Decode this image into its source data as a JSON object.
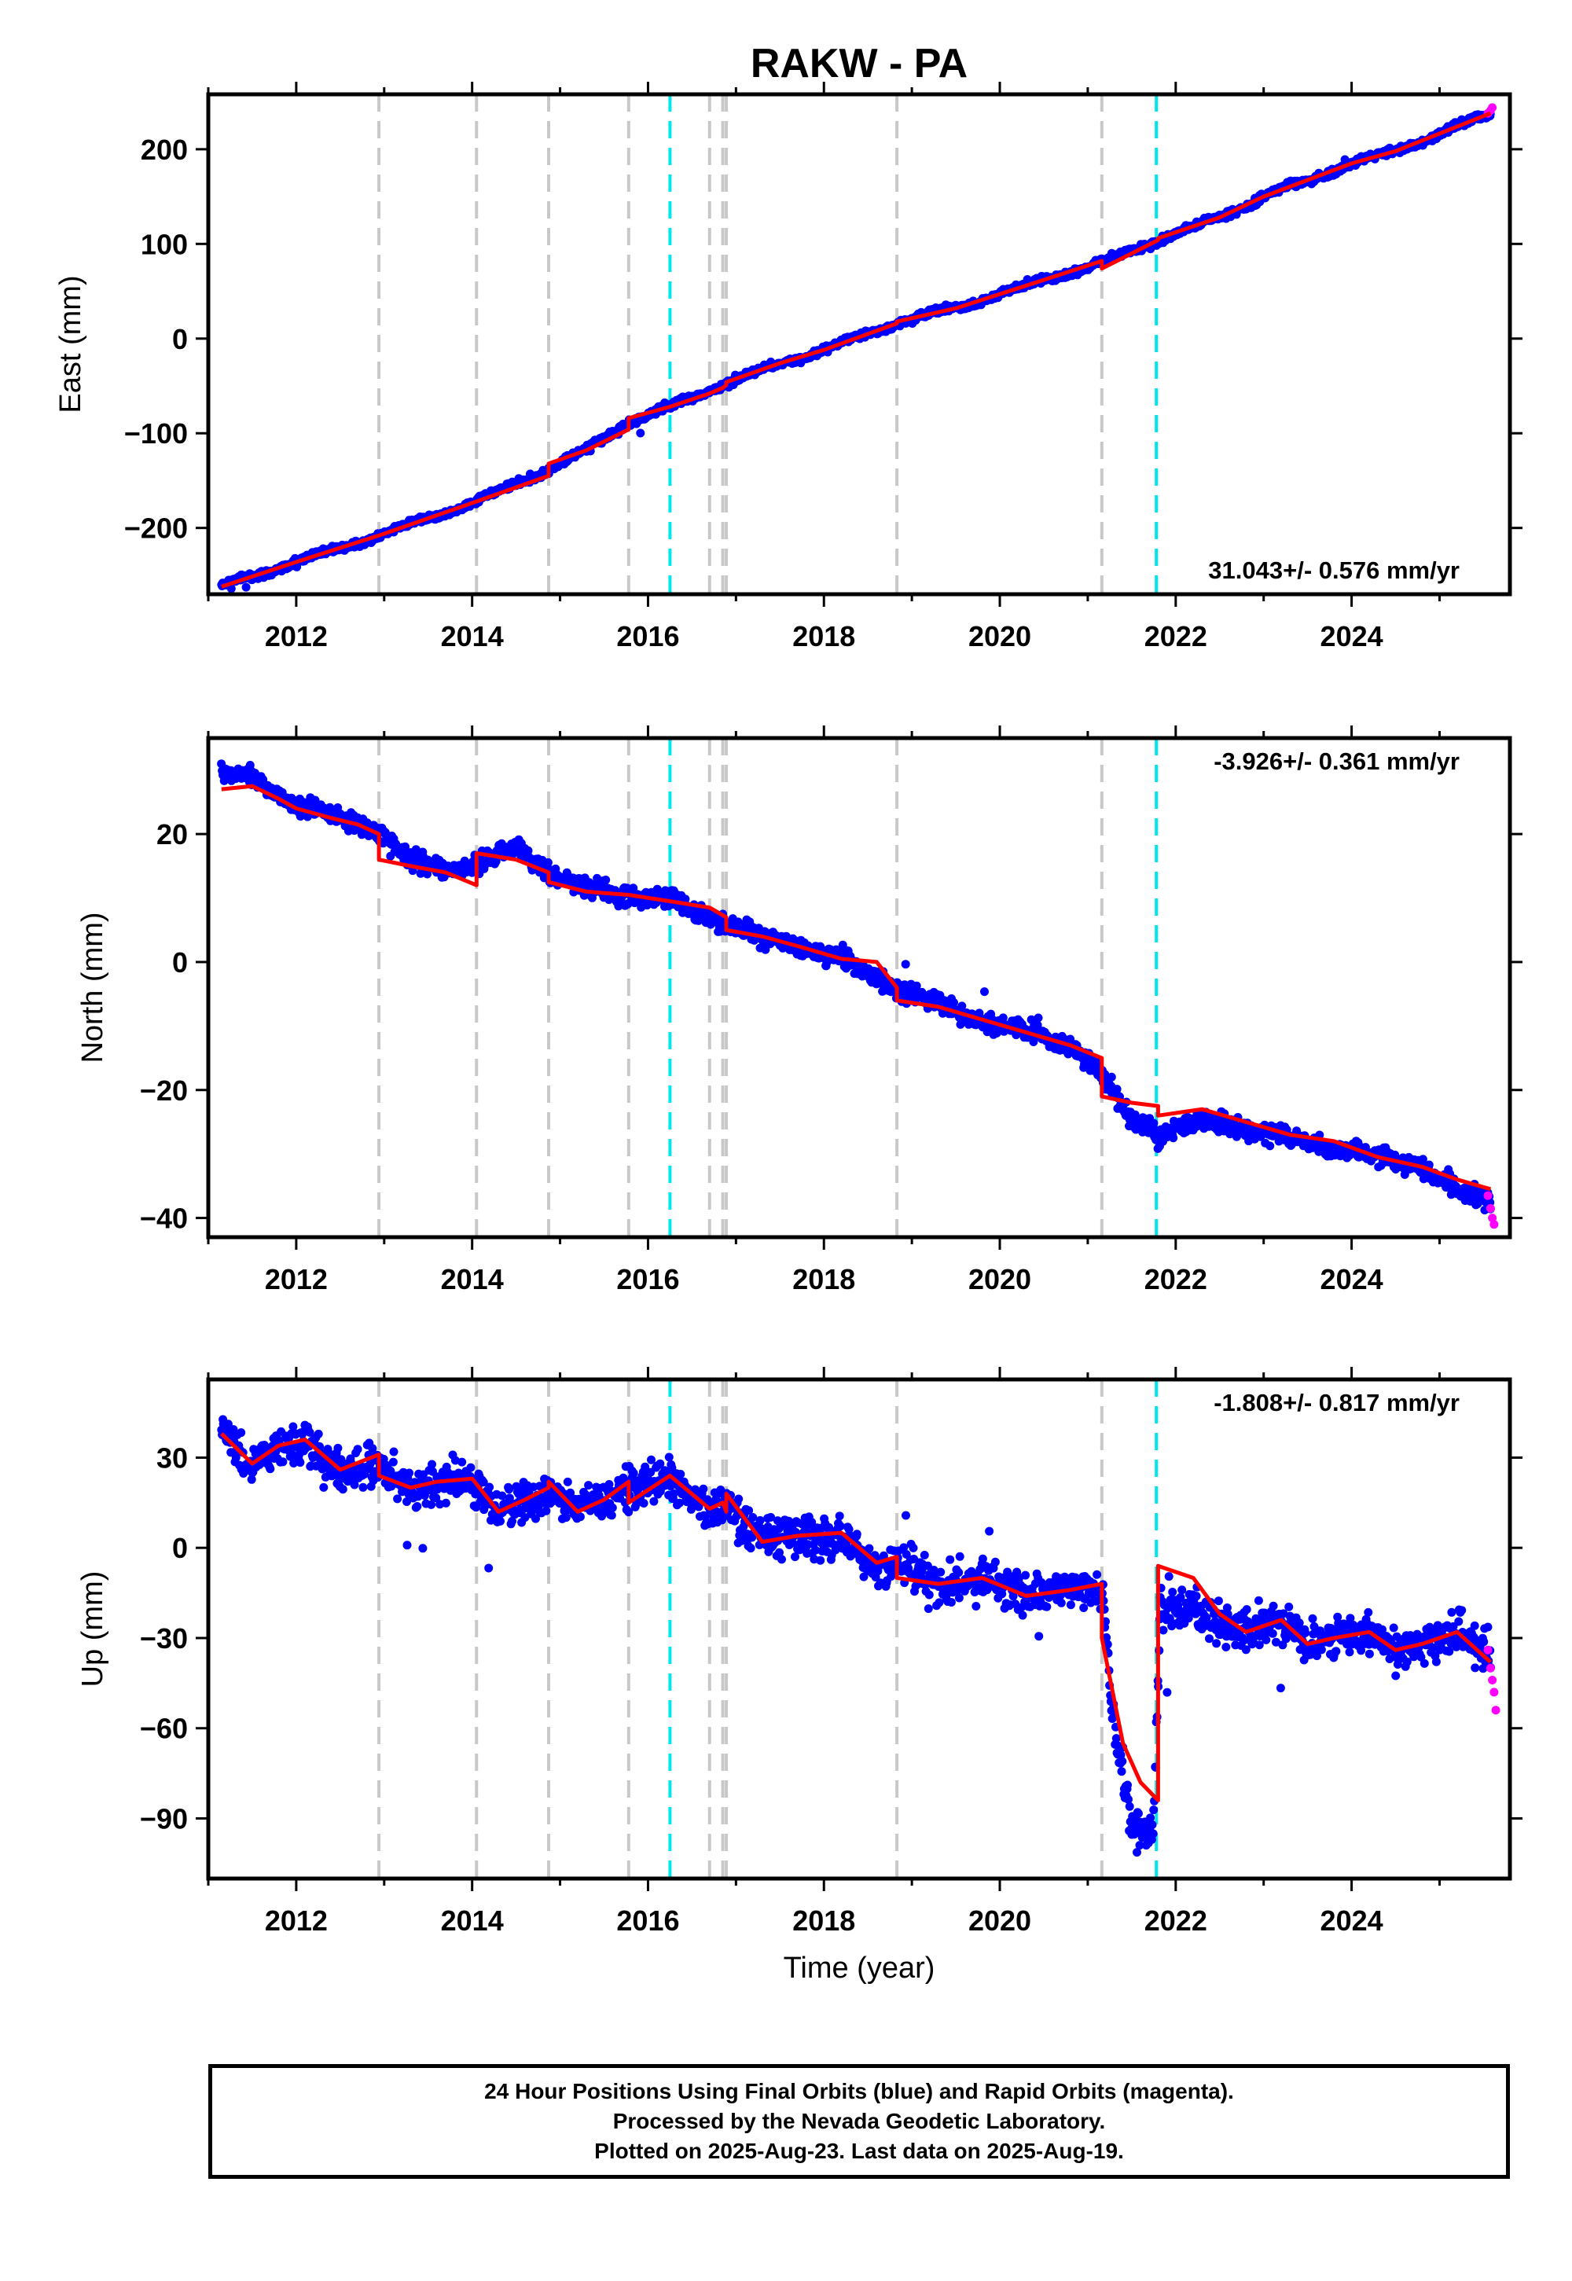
{
  "title": "RAKW - PA",
  "chart_data": [
    {
      "type": "scatter",
      "name": "east",
      "ylabel": "East (mm)",
      "xlabel": "",
      "xlim": [
        2011.0,
        2025.8
      ],
      "ylim": [
        -270,
        258
      ],
      "xticks": [
        2012,
        2014,
        2016,
        2018,
        2020,
        2022,
        2024
      ],
      "xtick_labels": [
        "2012",
        "2014",
        "2016",
        "2018",
        "2020",
        "2022",
        "2024"
      ],
      "yticks": [
        -200,
        -100,
        0,
        100,
        200
      ],
      "ytick_labels": [
        "−200",
        "−100",
        "0",
        "100",
        "200"
      ],
      "rate_label": "31.043+/- 0.576 mm/yr",
      "rate_position": "bottom-right",
      "model": {
        "x": [
          2011.15,
          2012.0,
          2012.94,
          2012.94,
          2014.05,
          2014.05,
          2014.87,
          2014.87,
          2015.3,
          2015.78,
          2015.78,
          2016.25,
          2016.7,
          2016.85,
          2016.89,
          2016.89,
          2017.5,
          2018.0,
          2018.83,
          2018.83,
          2019.5,
          2020.5,
          2021.16,
          2021.16,
          2021.8,
          2021.8,
          2022.5,
          2023.0,
          2024.0,
          2024.5,
          2025.58
        ],
        "y": [
          -262,
          -236,
          -208,
          -208,
          -172,
          -172,
          -145,
          -132,
          -118,
          -96,
          -84,
          -72,
          -58,
          -52,
          -49,
          -46,
          -26,
          -12,
          16,
          18,
          32,
          62,
          82,
          74,
          104,
          106,
          128,
          150,
          185,
          198,
          238
        ]
      },
      "obs_trend": {
        "x": [
          2011.15,
          2012.0,
          2012.94,
          2014.05,
          2014.87,
          2015.3,
          2015.78,
          2016.25,
          2016.89,
          2017.5,
          2018.0,
          2018.83,
          2019.5,
          2020.5,
          2021.16,
          2021.8,
          2022.5,
          2023.0,
          2024.0,
          2024.5,
          2025.58
        ],
        "y": [
          -262,
          -236,
          -208,
          -172,
          -138,
          -118,
          -88,
          -72,
          -47,
          -26,
          -12,
          17,
          32,
          62,
          80,
          104,
          128,
          150,
          185,
          198,
          238
        ]
      },
      "scatter_sd": 3.0,
      "rapid": {
        "x": [
          2025.55,
          2025.58,
          2025.6
        ],
        "y": [
          238,
          241,
          244
        ]
      },
      "final_color": "#0000ff",
      "rapid_color": "#ff00ff",
      "model_color": "#ff0000"
    },
    {
      "type": "scatter",
      "name": "north",
      "ylabel": "North (mm)",
      "xlabel": "",
      "xlim": [
        2011.0,
        2025.8
      ],
      "ylim": [
        -43,
        35
      ],
      "xticks": [
        2012,
        2014,
        2016,
        2018,
        2020,
        2022,
        2024
      ],
      "xtick_labels": [
        "2012",
        "2014",
        "2016",
        "2018",
        "2020",
        "2022",
        "2024"
      ],
      "yticks": [
        -40,
        -20,
        0,
        20
      ],
      "ytick_labels": [
        "−40",
        "−20",
        "0",
        "20"
      ],
      "rate_label": "-3.926+/- 0.361 mm/yr",
      "rate_position": "top-right",
      "model": {
        "x": [
          2011.15,
          2011.5,
          2011.8,
          2012.0,
          2012.4,
          2012.7,
          2012.94,
          2012.94,
          2013.3,
          2013.7,
          2014.05,
          2014.05,
          2014.5,
          2014.87,
          2014.87,
          2015.3,
          2015.78,
          2015.78,
          2016.25,
          2016.7,
          2016.89,
          2016.89,
          2017.3,
          2017.7,
          2018.2,
          2018.6,
          2018.83,
          2018.83,
          2019.3,
          2019.8,
          2020.3,
          2020.8,
          2021.16,
          2021.16,
          2021.5,
          2021.8,
          2021.8,
          2022.3,
          2022.8,
          2023.3,
          2023.8,
          2024.3,
          2024.8,
          2025.2,
          2025.58
        ],
        "y": [
          27,
          27.5,
          25.5,
          24,
          22.5,
          21.5,
          20,
          16,
          15,
          14,
          12,
          17,
          16,
          14,
          12.5,
          11,
          10.5,
          10.5,
          9.5,
          8.5,
          7,
          5,
          4,
          2.5,
          0.5,
          0,
          -4,
          -6,
          -7,
          -9,
          -11,
          -13,
          -15,
          -21,
          -22,
          -22.5,
          -24,
          -23,
          -25,
          -27,
          -28,
          -30.5,
          -32,
          -34,
          -35.5
        ]
      },
      "obs_trend": {
        "x": [
          2011.15,
          2011.5,
          2011.8,
          2012.0,
          2012.4,
          2012.7,
          2012.94,
          2013.3,
          2013.7,
          2014.05,
          2014.5,
          2014.87,
          2015.3,
          2015.78,
          2016.25,
          2016.89,
          2017.3,
          2017.7,
          2018.2,
          2018.83,
          2019.3,
          2019.8,
          2020.3,
          2020.8,
          2021.16,
          2021.5,
          2021.8,
          2022.3,
          2022.8,
          2023.3,
          2023.8,
          2024.3,
          2024.8,
          2025.2,
          2025.58
        ],
        "y": [
          29.5,
          29,
          26,
          24.5,
          23,
          22,
          20,
          16,
          14.5,
          15,
          18,
          14,
          11.5,
          10.5,
          9.5,
          6,
          4,
          2.5,
          0.5,
          -4,
          -6.5,
          -9,
          -11,
          -13,
          -18,
          -25,
          -26.5,
          -25,
          -26,
          -27.5,
          -29,
          -30.5,
          -32,
          -35.5,
          -37
        ]
      },
      "scatter_sd": 1.2,
      "rapid": {
        "x": [
          2025.55,
          2025.58,
          2025.6,
          2025.62
        ],
        "y": [
          -36.5,
          -38.5,
          -40,
          -41
        ]
      },
      "final_color": "#0000ff",
      "rapid_color": "#ff00ff",
      "model_color": "#ff0000"
    },
    {
      "type": "scatter",
      "name": "up",
      "ylabel": "Up (mm)",
      "xlabel": "Time (year)",
      "xlim": [
        2011.0,
        2025.8
      ],
      "ylim": [
        -110,
        56
      ],
      "xticks": [
        2012,
        2014,
        2016,
        2018,
        2020,
        2022,
        2024
      ],
      "xtick_labels": [
        "2012",
        "2014",
        "2016",
        "2018",
        "2020",
        "2022",
        "2024"
      ],
      "yticks": [
        -90,
        -60,
        -30,
        0,
        30
      ],
      "ytick_labels": [
        "−90",
        "−60",
        "−30",
        "0",
        "30"
      ],
      "rate_label": "-1.808+/- 0.817 mm/yr",
      "rate_position": "top-right",
      "model": {
        "x": [
          2011.15,
          2011.5,
          2011.8,
          2012.1,
          2012.5,
          2012.94,
          2012.94,
          2013.3,
          2013.6,
          2014.0,
          2014.3,
          2014.6,
          2014.87,
          2014.87,
          2015.2,
          2015.5,
          2015.78,
          2015.78,
          2016.25,
          2016.7,
          2016.85,
          2016.89,
          2016.89,
          2017.3,
          2017.7,
          2018.2,
          2018.6,
          2018.83,
          2018.83,
          2019.3,
          2019.8,
          2020.3,
          2020.8,
          2021.16,
          2021.16,
          2021.4,
          2021.6,
          2021.8,
          2021.8,
          2022.2,
          2022.5,
          2022.8,
          2023.2,
          2023.5,
          2023.8,
          2024.2,
          2024.5,
          2024.8,
          2025.2,
          2025.58
        ],
        "y": [
          38,
          28,
          34,
          36,
          26,
          31,
          24,
          20,
          22,
          23,
          12,
          16,
          20,
          22,
          12,
          16,
          22,
          15,
          24,
          13,
          15,
          12,
          18,
          2,
          4,
          5,
          -5,
          -3,
          -10,
          -12,
          -10,
          -16,
          -14,
          -12,
          -30,
          -65,
          -78,
          -84,
          -6,
          -10,
          -22,
          -28,
          -24,
          -32,
          -30,
          -28,
          -34,
          -32,
          -28,
          -38
        ]
      },
      "obs_trend": {
        "x": [
          2011.15,
          2011.5,
          2011.8,
          2012.1,
          2012.5,
          2012.94,
          2013.3,
          2013.6,
          2014.0,
          2014.3,
          2014.6,
          2014.87,
          2015.2,
          2015.5,
          2015.78,
          2016.25,
          2016.7,
          2016.89,
          2017.3,
          2017.7,
          2018.2,
          2018.6,
          2018.83,
          2019.3,
          2019.8,
          2020.3,
          2020.8,
          2021.16,
          2021.3,
          2021.5,
          2021.75,
          2021.82,
          2022.2,
          2022.5,
          2022.8,
          2023.2,
          2023.5,
          2023.8,
          2024.2,
          2024.5,
          2024.8,
          2025.2,
          2025.58
        ],
        "y": [
          40,
          27,
          33,
          35,
          25,
          28,
          19,
          21,
          22,
          12,
          15,
          19,
          13,
          15,
          19,
          23,
          12,
          14,
          3,
          4,
          4,
          -6,
          -6,
          -12,
          -10,
          -16,
          -14,
          -12,
          -60,
          -92,
          -95,
          -20,
          -20,
          -26,
          -28,
          -24,
          -32,
          -30,
          -28,
          -34,
          -32,
          -28,
          -34
        ]
      },
      "scatter_sd": 5.5,
      "rapid": {
        "x": [
          2025.55,
          2025.58,
          2025.6,
          2025.62,
          2025.64
        ],
        "y": [
          -34,
          -40,
          -44,
          -48,
          -54
        ]
      },
      "final_color": "#0000ff",
      "rapid_color": "#ff00ff",
      "model_color": "#ff0000"
    }
  ],
  "events": {
    "gray": [
      2012.94,
      2014.05,
      2014.87,
      2015.78,
      2016.7,
      2016.85,
      2016.89,
      2018.83,
      2021.16
    ],
    "cyan": [
      2016.25,
      2021.78
    ],
    "gray_color": "#c8c8c8",
    "cyan_color": "#00e5ee"
  },
  "footer": {
    "line1": "24 Hour Positions Using Final Orbits (blue) and Rapid Orbits (magenta).",
    "line2": "Processed by the Nevada Geodetic Laboratory.",
    "line3": "Plotted on 2025-Aug-23. Last data on 2025-Aug-19."
  }
}
